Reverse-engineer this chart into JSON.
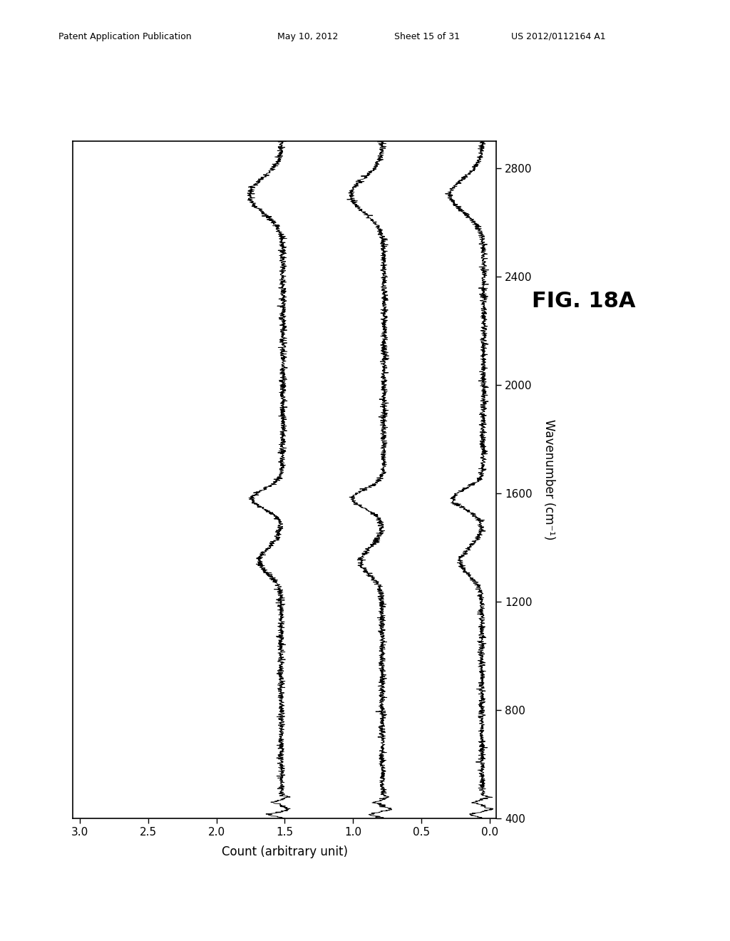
{
  "header_text1": "Patent Application Publication",
  "header_text2": "May 10, 2012",
  "header_text3": "Sheet 15 of 31",
  "header_text4": "US 2012/0112164 A1",
  "xlabel_rotated": "Wavenumber (cm⁻¹)",
  "ylabel_rotated": "Count (arbitrary unit)",
  "x_min": 400,
  "x_max": 2900,
  "y_min": 0.0,
  "y_max": 3.0,
  "xticks": [
    400,
    800,
    1200,
    1600,
    2000,
    2400,
    2800
  ],
  "yticks": [
    0.0,
    0.5,
    1.0,
    1.5,
    2.0,
    2.5,
    3.0
  ],
  "spectra_offsets": [
    0.05,
    0.78,
    1.52
  ],
  "noise_level": 0.012,
  "background_color": "#ffffff",
  "line_color": "#000000",
  "fig_label": "FIG. 18A",
  "fig_label_fontsize": 22,
  "header_fontsize": 9,
  "axis_label_fontsize": 12,
  "tick_fontsize": 11
}
